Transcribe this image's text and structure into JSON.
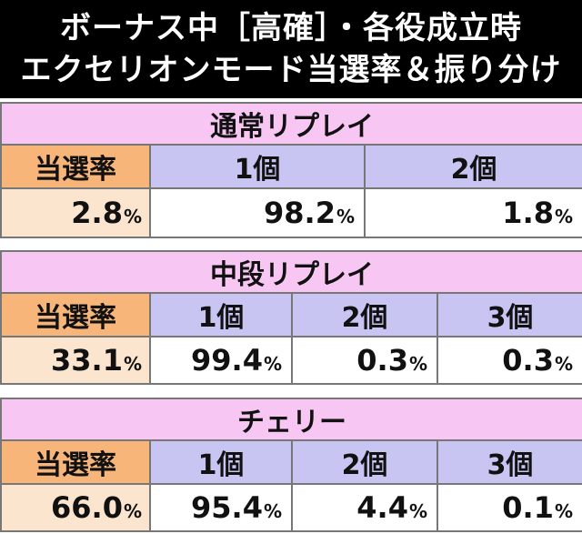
{
  "title": {
    "line1": "ボーナス中［高確］・各役成立時",
    "line2": "エクセリオンモード当選率＆振り分け"
  },
  "sections": [
    {
      "name": "通常リプレイ",
      "rate_label": "当選率",
      "rate": "2.8",
      "columns": [
        "1個",
        "2個"
      ],
      "values": [
        "98.2",
        "1.8"
      ]
    },
    {
      "name": "中段リプレイ",
      "rate_label": "当選率",
      "rate": "33.1",
      "columns": [
        "1個",
        "2個",
        "3個"
      ],
      "values": [
        "99.4",
        "0.3",
        "0.3"
      ]
    },
    {
      "name": "チェリー",
      "rate_label": "当選率",
      "rate": "66.0",
      "columns": [
        "1個",
        "2個",
        "3個"
      ],
      "values": [
        "95.4",
        "4.4",
        "0.1"
      ]
    }
  ],
  "unit": "%"
}
